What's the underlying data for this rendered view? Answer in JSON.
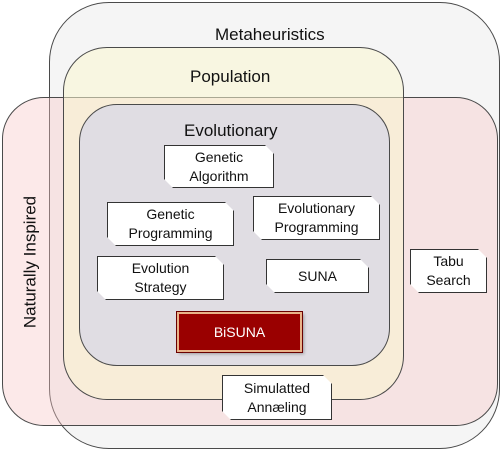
{
  "regions": {
    "metaheuristics": "Metaheuristics",
    "population": "Population",
    "evolutionary": "Evolutionary",
    "naturally_inspired": "Naturally Inspired"
  },
  "algorithms": {
    "genetic_algorithm": [
      "Genetic",
      "Algorithm"
    ],
    "genetic_programming": [
      "Genetic",
      "Programming"
    ],
    "evolutionary_programming": [
      "Evolutionary",
      "Programming"
    ],
    "evolution_strategy": [
      "Evolution",
      "Strategy"
    ],
    "suna": "SUNA",
    "bisuna": "BiSUNA",
    "tabu_search": [
      "Tabu",
      "Search"
    ],
    "simulated_annealing": [
      "Simulatted",
      "Annæling"
    ]
  },
  "colors": {
    "bisuna_fill": "#9a0000",
    "bisuna_border": "#e9b38a",
    "evolutionary_fill": "#e0dde3",
    "population_fill": "#faf6d0",
    "naturally_inspired_fill": "#f6c4c4",
    "metaheuristics_fill": "#ececec"
  }
}
